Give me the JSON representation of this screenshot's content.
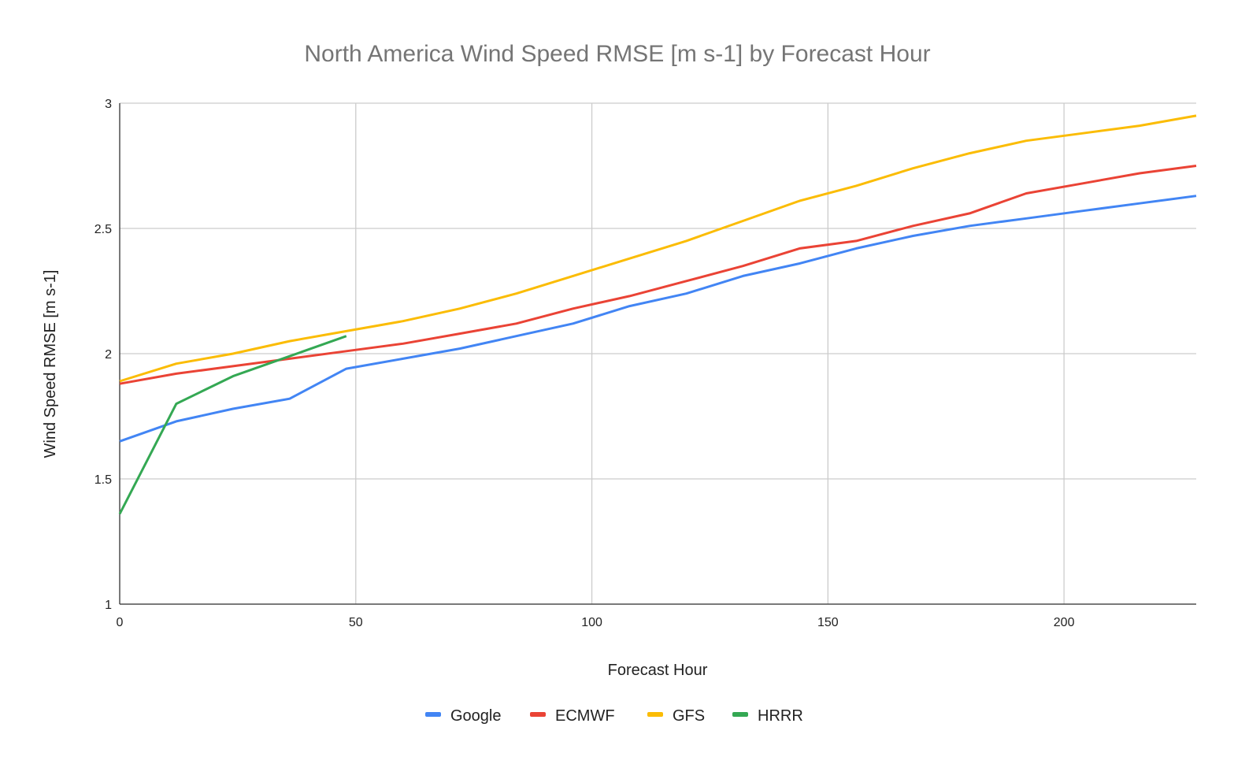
{
  "chart_data": {
    "type": "line",
    "title": "North America Wind Speed RMSE [m s-1] by Forecast Hour",
    "xlabel": "Forecast Hour",
    "ylabel": "Wind Speed RMSE [m s-1]",
    "xlim": [
      0,
      228
    ],
    "ylim": [
      1,
      3
    ],
    "xticks": [
      0,
      50,
      100,
      150,
      200
    ],
    "yticks": [
      1,
      1.5,
      2,
      2.5,
      3
    ],
    "grid": true,
    "legend_position": "bottom",
    "series": [
      {
        "name": "Google",
        "color": "#4285F4",
        "x": [
          0,
          12,
          24,
          36,
          48,
          60,
          72,
          84,
          96,
          108,
          120,
          132,
          144,
          156,
          168,
          180,
          192,
          204,
          216,
          228
        ],
        "values": [
          1.65,
          1.73,
          1.78,
          1.82,
          1.94,
          1.98,
          2.02,
          2.07,
          2.12,
          2.19,
          2.24,
          2.31,
          2.36,
          2.42,
          2.47,
          2.51,
          2.54,
          2.57,
          2.6,
          2.63
        ]
      },
      {
        "name": "ECMWF",
        "color": "#EA4335",
        "x": [
          0,
          12,
          24,
          36,
          48,
          60,
          72,
          84,
          96,
          108,
          120,
          132,
          144,
          156,
          168,
          180,
          192,
          204,
          216,
          228
        ],
        "values": [
          1.88,
          1.92,
          1.95,
          1.98,
          2.01,
          2.04,
          2.08,
          2.12,
          2.18,
          2.23,
          2.29,
          2.35,
          2.42,
          2.45,
          2.51,
          2.56,
          2.64,
          2.68,
          2.72,
          2.75
        ]
      },
      {
        "name": "GFS",
        "color": "#FBBC04",
        "x": [
          0,
          12,
          24,
          36,
          48,
          60,
          72,
          84,
          96,
          108,
          120,
          132,
          144,
          156,
          168,
          180,
          192,
          204,
          216,
          228
        ],
        "values": [
          1.89,
          1.96,
          2.0,
          2.05,
          2.09,
          2.13,
          2.18,
          2.24,
          2.31,
          2.38,
          2.45,
          2.53,
          2.61,
          2.67,
          2.74,
          2.8,
          2.85,
          2.88,
          2.91,
          2.95
        ]
      },
      {
        "name": "HRRR",
        "color": "#34A853",
        "x": [
          0,
          12,
          24,
          36,
          48
        ],
        "values": [
          1.36,
          1.8,
          1.91,
          1.99,
          2.07
        ]
      }
    ]
  }
}
